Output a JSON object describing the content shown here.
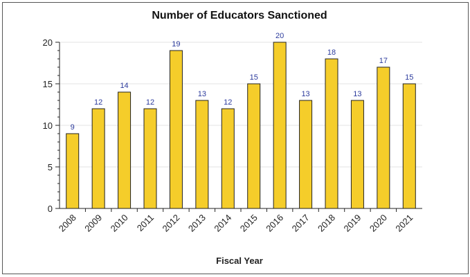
{
  "chart_data": {
    "type": "bar",
    "title": "Number of Educators Sanctioned",
    "xlabel": "Fiscal Year",
    "ylabel": "",
    "categories": [
      "2008",
      "2009",
      "2010",
      "2011",
      "2012",
      "2013",
      "2014",
      "2015",
      "2016",
      "2017",
      "2018",
      "2019",
      "2020",
      "2021"
    ],
    "values": [
      9,
      12,
      14,
      12,
      19,
      13,
      12,
      15,
      20,
      13,
      18,
      13,
      17,
      15
    ],
    "ylim": [
      0,
      20
    ],
    "yticks": [
      0,
      5,
      10,
      15,
      20
    ],
    "grid": true,
    "legend": "none",
    "colors": {
      "bar": "#f5cd2a",
      "bar_stroke": "#222222",
      "data_label": "#2b3a9c",
      "grid": "#e3e3e3"
    }
  }
}
